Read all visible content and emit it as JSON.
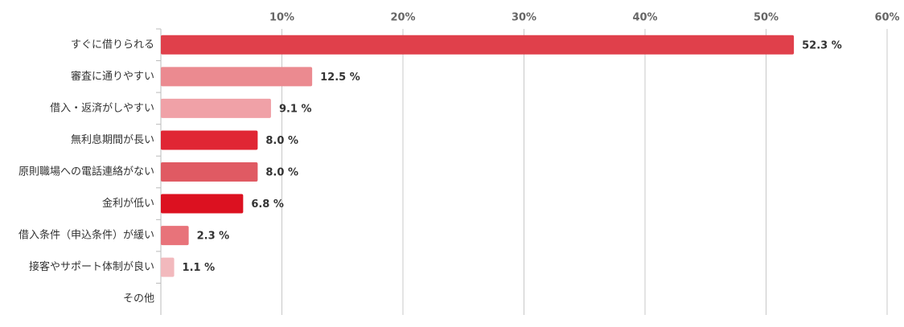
{
  "chart_data": {
    "type": "bar",
    "orientation": "horizontal",
    "categories": [
      "すぐに借りられる",
      "審査に通りやすい",
      "借入・返済がしやすい",
      "無利息期間が長い",
      "原則職場への電話連絡がない",
      "金利が低い",
      "借入条件（申込条件）が緩い",
      "接客やサポート体制が良い",
      "その他"
    ],
    "values": [
      52.3,
      12.5,
      9.1,
      8.0,
      8.0,
      6.8,
      2.3,
      1.1,
      null
    ],
    "value_labels": [
      "52.3 %",
      "12.5 %",
      "9.1 %",
      "8.0 %",
      "8.0 %",
      "6.8 %",
      "2.3 %",
      "1.1 %",
      null
    ],
    "colors": [
      "#e0404b",
      "#eb8a90",
      "#f0a1a7",
      "#e02634",
      "#e05a63",
      "#dc1120",
      "#e8737a",
      "#f2b9bd",
      null
    ],
    "label_color": "#c8102e",
    "xlim": [
      0,
      60
    ],
    "xticks": [
      {
        "value": 10,
        "label": "10%"
      },
      {
        "value": 20,
        "label": "20%"
      },
      {
        "value": 30,
        "label": "30%"
      },
      {
        "value": 40,
        "label": "40%"
      },
      {
        "value": 50,
        "label": "50%"
      },
      {
        "value": 60,
        "label": "60%"
      }
    ],
    "grid": true
  }
}
